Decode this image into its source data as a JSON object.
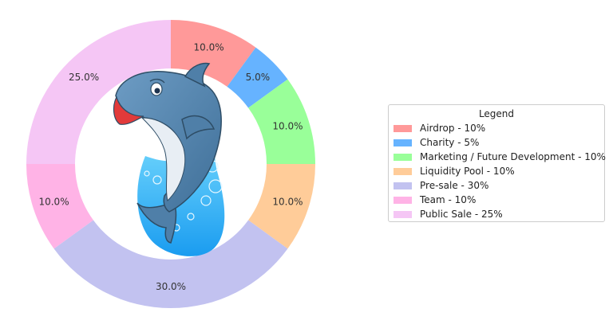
{
  "chart_data": {
    "type": "pie",
    "style": "donut",
    "start_angle": "top",
    "direction": "clockwise",
    "legend": {
      "title": "Legend",
      "placement": "right"
    },
    "slices": [
      {
        "label": "Airdrop - 10%",
        "value": 10,
        "display": "10.0%",
        "color": "#ff9999"
      },
      {
        "label": "Charity - 5%",
        "value": 5,
        "display": "5.0%",
        "color": "#66b3ff"
      },
      {
        "label": "Marketing / Future Development - 10%",
        "value": 10,
        "display": "10.0%",
        "color": "#99ff99"
      },
      {
        "label": "Liquidity Pool - 10%",
        "value": 10,
        "display": "10.0%",
        "color": "#ffcc99"
      },
      {
        "label": "Pre-sale - 30%",
        "value": 30,
        "display": "30.0%",
        "color": "#c2c2f0"
      },
      {
        "label": "Team - 10%",
        "value": 10,
        "display": "10.0%",
        "color": "#ffb3e6"
      },
      {
        "label": "Public Sale - 25%",
        "value": 25,
        "display": "25.0%",
        "color": "#f5c6f5"
      }
    ],
    "center_image": "dolphin-logo"
  }
}
